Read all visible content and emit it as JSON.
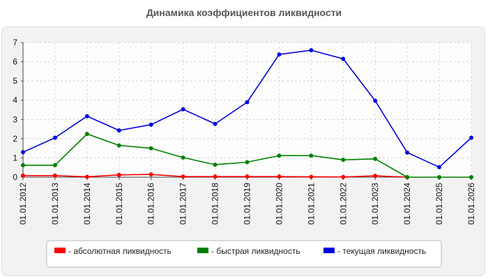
{
  "chart_data": {
    "type": "line",
    "title": "Динамика коэффициентов ликвидности",
    "categories": [
      "01.01.2012",
      "01.01.2013",
      "01.01.2014",
      "01.01.2015",
      "01.01.2016",
      "01.01.2017",
      "01.01.2018",
      "01.01.2019",
      "01.01.2020",
      "01.01.2021",
      "01.01.2022",
      "01.01.2023",
      "01.01.2024",
      "01.01.2025",
      "01.01.2026"
    ],
    "ylim": [
      0,
      7
    ],
    "yticks": [
      0,
      1,
      2,
      3,
      4,
      5,
      6,
      7
    ],
    "grid": true,
    "legend_position": "bottom",
    "series": [
      {
        "name": "- абсолютная ликвидность",
        "color": "#ff0000",
        "values": [
          0.08,
          0.08,
          0.02,
          0.12,
          0.14,
          0.03,
          0.03,
          0.03,
          0.03,
          0.02,
          0.01,
          0.07,
          0.0,
          null,
          null
        ]
      },
      {
        "name": "- быстрая ликвидность",
        "color": "#008000",
        "values": [
          0.62,
          0.62,
          2.25,
          1.65,
          1.5,
          1.02,
          0.65,
          0.78,
          1.12,
          1.12,
          0.9,
          0.95,
          0.0,
          0.0,
          0.0
        ]
      },
      {
        "name": "- текущая ликвидность",
        "color": "#0000dd",
        "values": [
          1.3,
          2.05,
          3.17,
          2.43,
          2.73,
          3.53,
          2.77,
          3.9,
          6.38,
          6.6,
          6.15,
          3.97,
          1.28,
          0.52,
          2.05
        ]
      }
    ]
  }
}
